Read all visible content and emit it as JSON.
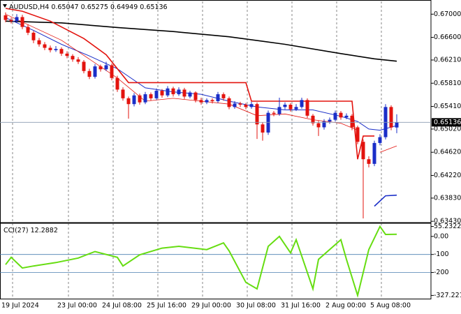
{
  "chart_data": [
    {
      "type": "candlestick",
      "title": "AUDUSD,H4",
      "categories": [
        "19 Jul 2024",
        null,
        null,
        null,
        null,
        null,
        null,
        null,
        null,
        null,
        "23 Jul 00:00",
        null,
        null,
        null,
        null,
        null,
        null,
        null,
        "24 Jul 08:00",
        null,
        null,
        null,
        null,
        null,
        null,
        null,
        "25 Jul 16:00",
        null,
        null,
        null,
        null,
        null,
        null,
        null,
        "29 Jul 00:00",
        null,
        null,
        null,
        null,
        null,
        null,
        null,
        "30 Jul 08:00",
        null,
        null,
        null,
        null,
        null,
        null,
        null,
        "31 Jul 16:00",
        null,
        null,
        null,
        null,
        null,
        null,
        null,
        "2 Aug 00:00",
        null,
        null,
        null,
        null,
        null,
        null,
        null,
        "5 Aug 08:00",
        null,
        null,
        null,
        null
      ],
      "open": [
        0.6698,
        0.669,
        0.6688,
        0.6695,
        0.6678,
        0.6668,
        0.6655,
        0.6648,
        0.6642,
        0.6638,
        0.664,
        0.6632,
        0.6628,
        0.6622,
        0.6618,
        0.6602,
        0.6592,
        0.661,
        0.6605,
        0.6612,
        0.659,
        0.657,
        0.6555,
        0.6545,
        0.656,
        0.6548,
        0.6562,
        0.6555,
        0.6568,
        0.656,
        0.6572,
        0.6562,
        0.657,
        0.6558,
        0.6565,
        0.6552,
        0.6548,
        0.6552,
        0.655,
        0.6562,
        0.6555,
        0.654,
        0.6546,
        0.6544,
        0.654,
        0.6545,
        0.651,
        0.6496,
        0.653,
        0.6528,
        0.654,
        0.6544,
        0.6536,
        0.654,
        0.6552,
        0.6525,
        0.6512,
        0.6505,
        0.6515,
        0.6518,
        0.653,
        0.6522,
        0.6525,
        0.6505,
        0.648,
        0.645,
        0.6442,
        0.6478,
        0.6488,
        0.654,
        0.65047
      ],
      "high": [
        0.6703,
        0.6694,
        0.67,
        0.6699,
        0.6682,
        0.6671,
        0.6659,
        0.6652,
        0.6646,
        0.6645,
        0.6643,
        0.6636,
        0.6631,
        0.6626,
        0.6621,
        0.6606,
        0.6614,
        0.6613,
        0.6618,
        0.6615,
        0.6594,
        0.6574,
        0.6558,
        0.6564,
        0.6563,
        0.6566,
        0.6565,
        0.6572,
        0.6571,
        0.6576,
        0.6575,
        0.6574,
        0.6573,
        0.6568,
        0.6567,
        0.6556,
        0.6555,
        0.6555,
        0.6566,
        0.6565,
        0.6558,
        0.655,
        0.6549,
        0.6547,
        0.6549,
        0.6548,
        0.6514,
        0.6534,
        0.6533,
        0.6556,
        0.6548,
        0.6547,
        0.6545,
        0.6556,
        0.6555,
        0.6528,
        0.6516,
        0.6519,
        0.6522,
        0.6534,
        0.6533,
        0.6529,
        0.6528,
        0.6508,
        0.6484,
        0.6455,
        0.6482,
        0.6493,
        0.6545,
        0.6543,
        0.65275
      ],
      "low": [
        0.6686,
        0.6684,
        0.6685,
        0.6674,
        0.6664,
        0.665,
        0.6644,
        0.6638,
        0.6634,
        0.6635,
        0.6628,
        0.6624,
        0.6618,
        0.6614,
        0.6598,
        0.6588,
        0.6589,
        0.6601,
        0.6602,
        0.6586,
        0.6566,
        0.6551,
        0.652,
        0.6541,
        0.6544,
        0.6545,
        0.6551,
        0.6552,
        0.6556,
        0.6557,
        0.6558,
        0.6559,
        0.6554,
        0.6555,
        0.6548,
        0.6544,
        0.6545,
        0.6546,
        0.6547,
        0.6551,
        0.6536,
        0.6537,
        0.654,
        0.6536,
        0.6537,
        0.6485,
        0.6482,
        0.6492,
        0.6524,
        0.6525,
        0.6536,
        0.6532,
        0.6533,
        0.6537,
        0.6521,
        0.6508,
        0.649,
        0.6501,
        0.6511,
        0.6515,
        0.6518,
        0.6519,
        0.65,
        0.6476,
        0.6348,
        0.6436,
        0.6438,
        0.6474,
        0.6484,
        0.65,
        0.64949
      ],
      "close": [
        0.669,
        0.6688,
        0.6695,
        0.6678,
        0.6668,
        0.6655,
        0.6648,
        0.6642,
        0.6638,
        0.664,
        0.6632,
        0.6628,
        0.6622,
        0.6618,
        0.6602,
        0.6592,
        0.661,
        0.6605,
        0.6612,
        0.659,
        0.657,
        0.6555,
        0.6545,
        0.656,
        0.6548,
        0.6562,
        0.6555,
        0.6568,
        0.656,
        0.6572,
        0.6562,
        0.657,
        0.6558,
        0.6565,
        0.6552,
        0.6548,
        0.6552,
        0.655,
        0.6562,
        0.6555,
        0.654,
        0.6546,
        0.6544,
        0.654,
        0.6545,
        0.651,
        0.6496,
        0.653,
        0.6528,
        0.654,
        0.6544,
        0.6536,
        0.654,
        0.6552,
        0.6525,
        0.6512,
        0.6505,
        0.6515,
        0.6518,
        0.653,
        0.6522,
        0.6525,
        0.6505,
        0.648,
        0.645,
        0.6442,
        0.6478,
        0.6488,
        0.654,
        0.65047,
        0.65136
      ],
      "up_color": "#1a2ec8",
      "down_color": "#e3130e",
      "price_line_color": "#8a9bb0",
      "series": [
        {
          "color": "#000000",
          "width": 1.6,
          "x": [
            0,
            10,
            20,
            30,
            40,
            50,
            60,
            66,
            70
          ],
          "values": [
            0.6688,
            0.6685,
            0.6677,
            0.667,
            0.6661,
            0.6648,
            0.6632,
            0.6623,
            0.6619
          ]
        },
        {
          "color": "#1a2ec8",
          "width": 1,
          "x": [
            0,
            5,
            10,
            15,
            20,
            25,
            30,
            35,
            40,
            45,
            50,
            55,
            60,
            63,
            65,
            67,
            70
          ],
          "values": [
            0.6694,
            0.6672,
            0.6648,
            0.6628,
            0.6606,
            0.6573,
            0.6566,
            0.6562,
            0.655,
            0.654,
            0.6535,
            0.6535,
            0.6524,
            0.6515,
            0.6502,
            0.65,
            0.6508
          ]
        },
        {
          "color": "#e3130e",
          "width": 0.8,
          "x": [
            0,
            10,
            20,
            25,
            30,
            35,
            40,
            45,
            50,
            55,
            60,
            63,
            64,
            67,
            70
          ],
          "values": [
            0.67,
            0.6655,
            0.659,
            0.655,
            0.6555,
            0.655,
            0.6545,
            0.6525,
            0.6528,
            0.6518,
            0.6512,
            0.65,
            null,
            0.6462,
            0.6473
          ]
        },
        {
          "color": "#e3130e",
          "width": 1.6,
          "x": [
            0,
            3,
            8,
            14,
            18,
            22,
            43,
            44,
            62,
            63,
            64,
            66
          ],
          "values": [
            0.671,
            0.6705,
            0.6688,
            0.6658,
            0.663,
            0.6582,
            0.6582,
            0.655,
            0.655,
            0.645,
            0.649,
            0.649
          ]
        },
        {
          "color": "#1a2ec8",
          "width": 1.6,
          "x": [
            66,
            68,
            70
          ],
          "values": [
            0.6369,
            0.6387,
            0.6388
          ]
        }
      ],
      "ylim": [
        0.6342,
        0.6722
      ],
      "yticks": [
        {
          "value": 0.67,
          "label": "0.67000"
        },
        {
          "value": 0.666,
          "label": "0.66600"
        },
        {
          "value": 0.6621,
          "label": "0.66210"
        },
        {
          "value": 0.6581,
          "label": "0.65810"
        },
        {
          "value": 0.6541,
          "label": "0.65410"
        },
        {
          "value": 0.6502,
          "label": "0.65020"
        },
        {
          "value": 0.6462,
          "label": "0.64620"
        },
        {
          "value": 0.6422,
          "label": "0.64220"
        },
        {
          "value": 0.6383,
          "label": "0.63830"
        },
        {
          "value": 0.6343,
          "label": "0.63430"
        }
      ],
      "grid": true
    },
    {
      "type": "line",
      "title": "CCI(27)",
      "color": "#66dd11",
      "x": [
        0,
        1,
        3,
        5,
        9,
        13,
        16,
        20,
        21,
        24,
        28,
        31,
        36,
        39,
        40,
        43,
        45,
        47,
        49,
        51,
        52,
        55,
        56,
        60,
        61,
        63,
        65,
        67,
        68,
        70
      ],
      "values": [
        -156,
        -116,
        -175,
        -164,
        -145,
        -120,
        -84,
        -116,
        -164,
        -102,
        -65,
        -55,
        -73,
        -36,
        -80,
        -255,
        -291,
        -55,
        0,
        -91,
        -18,
        -291,
        -127,
        -18,
        -127,
        -327.2213,
        -73,
        55.2322,
        11,
        12.2882
      ],
      "ylim": [
        -345,
        69
      ],
      "yticks": [
        55.2322,
        {
          "value": 0,
          "label": "0.00"
        },
        -100,
        -200,
        -327.2213
      ],
      "levels": [
        -100,
        -200
      ],
      "level_color": "#4a7fb0"
    }
  ]
}
